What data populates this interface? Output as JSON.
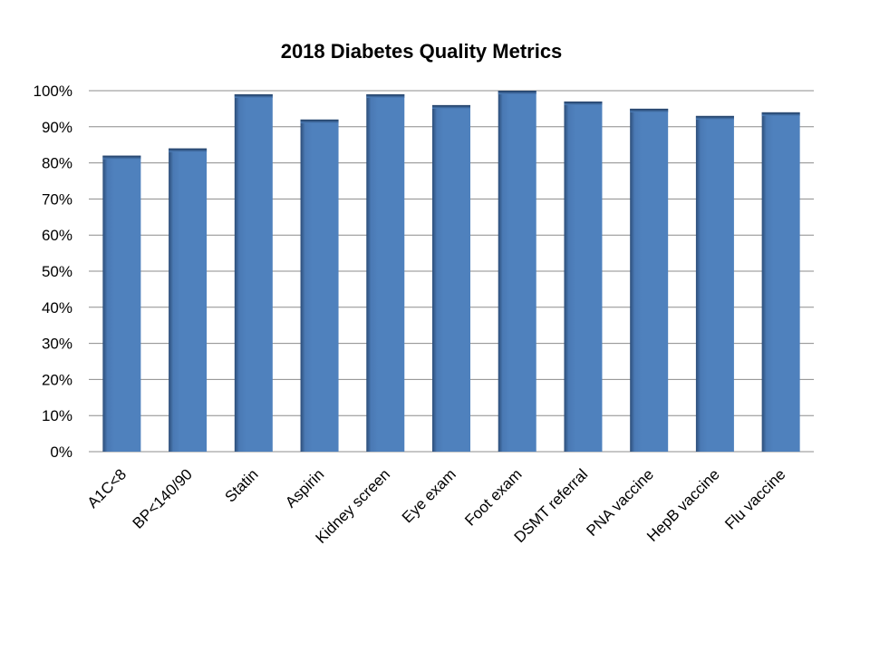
{
  "chart_data": {
    "type": "bar",
    "title": "2018 Diabetes Quality Metrics",
    "xlabel": "",
    "ylabel": "",
    "categories": [
      "A1C<8",
      "BP<140/90",
      "Statin",
      "Aspirin",
      "Kidney screen",
      "Eye exam",
      "Foot exam",
      "DSMT referral",
      "PNA vaccine",
      "HepB vaccine",
      "Flu vaccine"
    ],
    "values": [
      82,
      84,
      99,
      92,
      99,
      96,
      100,
      97,
      95,
      93,
      94
    ],
    "ylim": [
      0,
      100
    ],
    "yticks": [
      0,
      10,
      20,
      30,
      40,
      50,
      60,
      70,
      80,
      90,
      100
    ],
    "ytick_labels": [
      "0%",
      "10%",
      "20%",
      "30%",
      "40%",
      "50%",
      "60%",
      "70%",
      "80%",
      "90%",
      "100%"
    ],
    "grid": true,
    "legend": "none",
    "colors": {
      "bar": "#4f81bd",
      "bar_edge": "#2a4a72",
      "grid": "#8c8c8c"
    }
  }
}
